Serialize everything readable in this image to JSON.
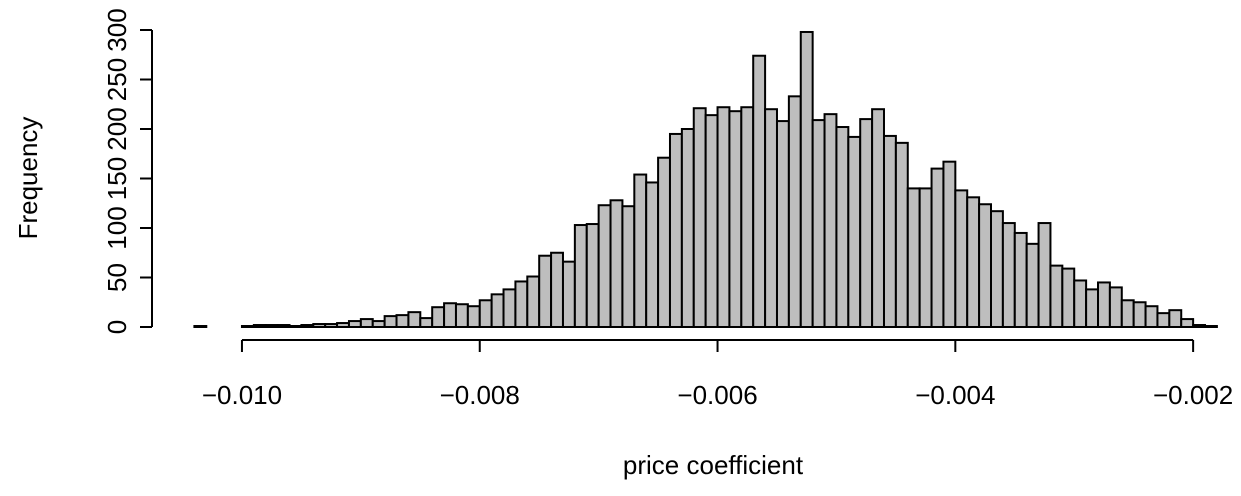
{
  "chart_data": {
    "type": "histogram",
    "xlabel": "price coefficient",
    "ylabel": "Frequency",
    "bins": [
      -0.0104,
      -0.0103,
      -0.0102,
      -0.0101,
      -0.01,
      -0.0099,
      -0.0098,
      -0.0097,
      -0.0096,
      -0.0095,
      -0.0094,
      -0.0093,
      -0.0092,
      -0.0091,
      -0.009,
      -0.0089,
      -0.0088,
      -0.0087,
      -0.0086,
      -0.0085,
      -0.0084,
      -0.0083,
      -0.0082,
      -0.0081,
      -0.008,
      -0.0079,
      -0.0078,
      -0.0077,
      -0.0076,
      -0.0075,
      -0.0074,
      -0.0073,
      -0.0072,
      -0.0071,
      -0.007,
      -0.0069,
      -0.0068,
      -0.0067,
      -0.0066,
      -0.0065,
      -0.0064,
      -0.0063,
      -0.0062,
      -0.0061,
      -0.006,
      -0.0059,
      -0.0058,
      -0.0057,
      -0.0056,
      -0.0055,
      -0.0054,
      -0.0053,
      -0.0052,
      -0.0051,
      -0.005,
      -0.0049,
      -0.0048,
      -0.0047,
      -0.0046,
      -0.0045,
      -0.0044,
      -0.0043,
      -0.0042,
      -0.0041,
      -0.004,
      -0.0039,
      -0.0038,
      -0.0037,
      -0.0036,
      -0.0035,
      -0.0034,
      -0.0033,
      -0.0032,
      -0.0031,
      -0.003,
      -0.0029,
      -0.0028,
      -0.0027,
      -0.0026,
      -0.0025,
      -0.0024,
      -0.0023,
      -0.0022,
      -0.0021,
      -0.002,
      -0.0019,
      -0.0018
    ],
    "values": [
      1,
      0,
      0,
      0,
      1,
      2,
      2,
      2,
      1,
      2,
      3,
      3,
      4,
      6,
      8,
      6,
      11,
      12,
      15,
      9,
      20,
      24,
      23,
      21,
      27,
      33,
      38,
      46,
      51,
      72,
      75,
      66,
      103,
      104,
      123,
      128,
      122,
      154,
      146,
      171,
      195,
      200,
      221,
      214,
      222,
      218,
      222,
      274,
      220,
      208,
      233,
      298,
      209,
      215,
      202,
      192,
      210,
      220,
      193,
      186,
      140,
      140,
      160,
      167,
      138,
      131,
      124,
      117,
      105,
      95,
      84,
      105,
      62,
      59,
      47,
      38,
      45,
      40,
      27,
      25,
      21,
      14,
      17,
      8,
      2,
      1
    ],
    "color": "#bebebe",
    "xlim": [
      -0.0104,
      -0.0018
    ],
    "xticks": [
      {
        "value": -0.01,
        "label": "−0.010"
      },
      {
        "value": -0.008,
        "label": "−0.008"
      },
      {
        "value": -0.006,
        "label": "−0.006"
      },
      {
        "value": -0.004,
        "label": "−0.004"
      },
      {
        "value": -0.002,
        "label": "−0.002"
      }
    ],
    "ylim": [
      0,
      300
    ],
    "yticks": [
      0,
      50,
      100,
      150,
      200,
      250,
      300
    ]
  }
}
